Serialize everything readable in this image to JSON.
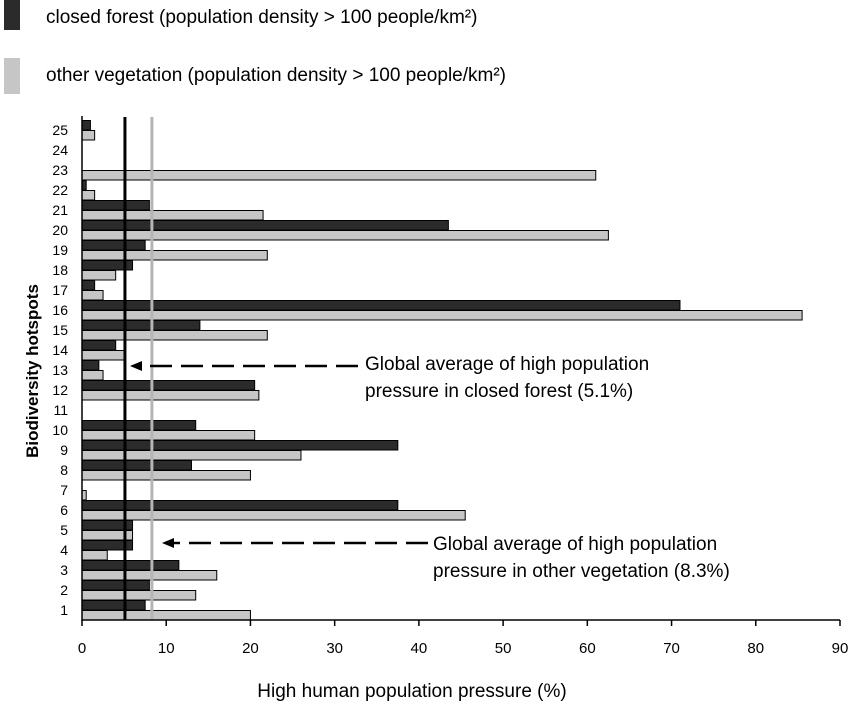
{
  "chart_data": {
    "type": "bar",
    "orientation": "horizontal",
    "categories": [
      "1",
      "2",
      "3",
      "4",
      "5",
      "6",
      "7",
      "8",
      "9",
      "10",
      "11",
      "12",
      "13",
      "14",
      "15",
      "16",
      "17",
      "18",
      "19",
      "20",
      "21",
      "22",
      "23",
      "24",
      "25"
    ],
    "series": [
      {
        "name": "closed forest (population density > 100 people/km²)",
        "color": "#2b2b2b",
        "values": [
          7.5,
          8,
          11.5,
          6,
          6,
          37.5,
          0,
          13,
          37.5,
          13.5,
          0,
          20.5,
          2,
          4,
          14,
          71,
          1.5,
          6,
          7.5,
          43.5,
          8,
          0.5,
          0,
          0,
          1
        ]
      },
      {
        "name": "other vegetation (population density > 100 people/km²)",
        "color": "#c6c6c6",
        "values": [
          20,
          13.5,
          16,
          3,
          6,
          45.5,
          0.5,
          20,
          26,
          20.5,
          0,
          21,
          2.5,
          5,
          22,
          85.5,
          2.5,
          4,
          22,
          62.5,
          21.5,
          1.5,
          61,
          0,
          1.5
        ]
      }
    ],
    "xlabel": "High human population pressure (%)",
    "ylabel": "Biodiversity hotspots",
    "xlim": [
      0,
      90
    ],
    "xticks": [
      0,
      10,
      20,
      30,
      40,
      50,
      60,
      70,
      80,
      90
    ],
    "reference_lines": [
      {
        "value": 5.1,
        "color": "#000000"
      },
      {
        "value": 8.3,
        "color": "#b5b5b5"
      }
    ],
    "annotations": [
      {
        "line1": "Global average of high population",
        "line2": "pressure in closed forest (5.1%)"
      },
      {
        "line1": "Global average of high population",
        "line2": "pressure in other vegetation (8.3%)"
      }
    ],
    "legend": {
      "position": "top-left",
      "closed_forest": "closed forest (population density > 100 people/km²)",
      "other_vegetation": "other vegetation (population density > 100 people/km²)"
    }
  }
}
